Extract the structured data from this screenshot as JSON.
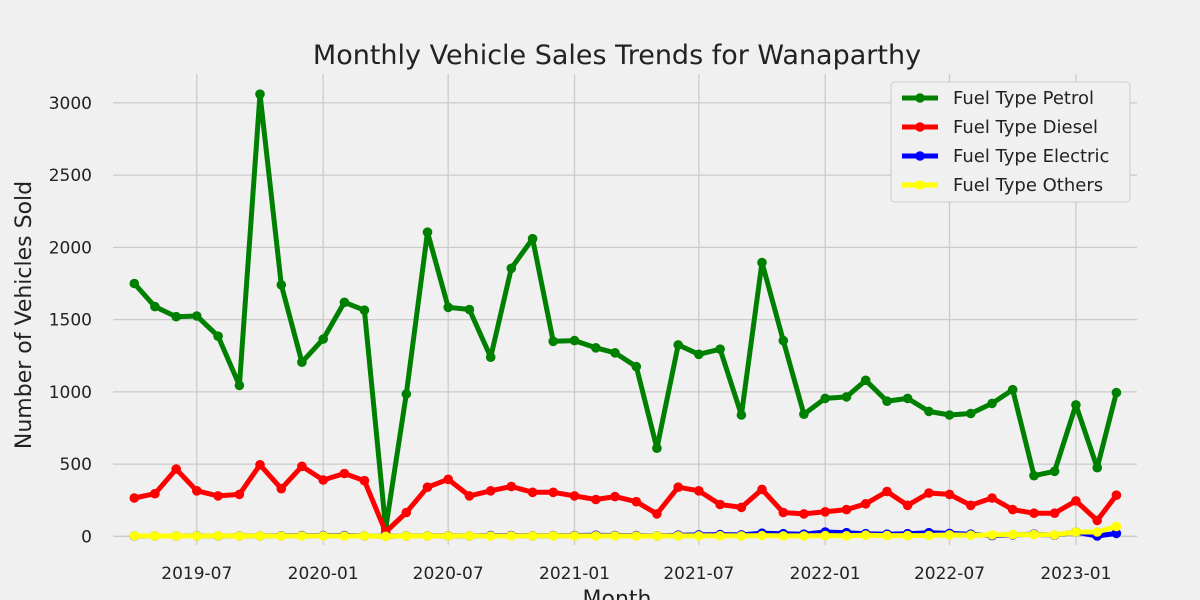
{
  "chart_data": {
    "type": "line",
    "title": "Monthly Vehicle Sales Trends for Wanaparthy",
    "xlabel": "Month",
    "ylabel": "Number of Vehicles Sold",
    "ylim": [
      -60,
      3200
    ],
    "xlim": [
      "2019-03-01",
      "2023-03-31"
    ],
    "yticks": [
      0,
      500,
      1000,
      1500,
      2000,
      2500,
      3000
    ],
    "xticks": [
      "2019-07",
      "2020-01",
      "2020-07",
      "2021-01",
      "2021-07",
      "2022-01",
      "2022-07",
      "2023-01"
    ],
    "grid": true,
    "legend_position": "top-right",
    "x": [
      "2019-04",
      "2019-05",
      "2019-06",
      "2019-07",
      "2019-08",
      "2019-09",
      "2019-10",
      "2019-11",
      "2019-12",
      "2020-01",
      "2020-02",
      "2020-03",
      "2020-04",
      "2020-05",
      "2020-06",
      "2020-07",
      "2020-08",
      "2020-09",
      "2020-10",
      "2020-11",
      "2020-12",
      "2021-01",
      "2021-02",
      "2021-03",
      "2021-04",
      "2021-05",
      "2021-06",
      "2021-07",
      "2021-08",
      "2021-09",
      "2021-10",
      "2021-11",
      "2021-12",
      "2022-01",
      "2022-02",
      "2022-03",
      "2022-04",
      "2022-05",
      "2022-06",
      "2022-07",
      "2022-08",
      "2022-09",
      "2022-10",
      "2022-11",
      "2022-12",
      "2023-01",
      "2023-02",
      "2023-03"
    ],
    "series": [
      {
        "name": "Fuel Type Petrol",
        "color": "#008000",
        "values": [
          1750,
          1590,
          1520,
          1525,
          1385,
          1045,
          3060,
          1740,
          1205,
          1365,
          1620,
          1565,
          55,
          985,
          2105,
          1585,
          1570,
          1240,
          1855,
          2060,
          1350,
          1355,
          1305,
          1270,
          1175,
          610,
          1325,
          1260,
          1295,
          840,
          1895,
          1355,
          845,
          955,
          965,
          1080,
          935,
          955,
          865,
          840,
          850,
          920,
          1015,
          420,
          450,
          910,
          475,
          995
        ]
      },
      {
        "name": "Fuel Type Diesel",
        "color": "#ff0000",
        "values": [
          265,
          295,
          465,
          315,
          280,
          290,
          495,
          330,
          485,
          390,
          435,
          385,
          30,
          165,
          340,
          395,
          280,
          315,
          345,
          305,
          305,
          280,
          255,
          275,
          240,
          155,
          340,
          315,
          220,
          200,
          325,
          165,
          155,
          170,
          185,
          225,
          310,
          215,
          300,
          290,
          215,
          265,
          185,
          160,
          160,
          245,
          110,
          285
        ]
      },
      {
        "name": "Fuel Type Electric",
        "color": "#0000ff",
        "values": [
          2,
          2,
          2,
          3,
          2,
          3,
          3,
          4,
          5,
          5,
          6,
          3,
          1,
          3,
          3,
          4,
          3,
          5,
          6,
          4,
          5,
          6,
          7,
          6,
          5,
          3,
          8,
          10,
          12,
          10,
          22,
          18,
          15,
          30,
          25,
          18,
          15,
          18,
          25,
          20,
          15,
          5,
          10,
          15,
          8,
          30,
          2,
          20
        ]
      },
      {
        "name": "Fuel Type Others",
        "color": "#ffff00",
        "values": [
          3,
          2,
          2,
          2,
          3,
          2,
          3,
          2,
          3,
          3,
          2,
          3,
          0,
          2,
          2,
          3,
          3,
          2,
          3,
          3,
          4,
          3,
          3,
          3,
          2,
          2,
          3,
          3,
          4,
          3,
          5,
          3,
          3,
          5,
          4,
          8,
          5,
          5,
          6,
          10,
          8,
          10,
          12,
          12,
          10,
          30,
          30,
          68
        ]
      }
    ]
  }
}
